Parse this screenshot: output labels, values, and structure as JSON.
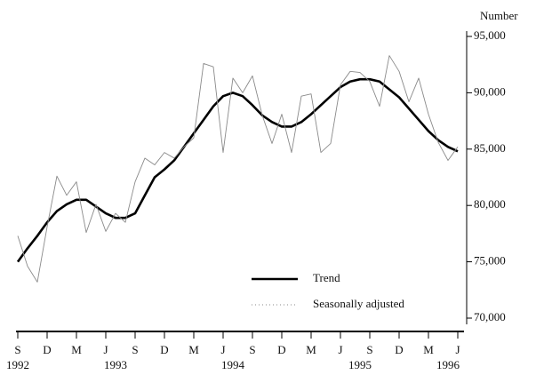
{
  "chart_data": {
    "type": "line",
    "y_axis_label": "Number",
    "categories": [
      "S",
      null,
      null,
      "D",
      null,
      null,
      "M",
      null,
      null,
      "J",
      null,
      null,
      "S",
      null,
      null,
      "D",
      null,
      null,
      "M",
      null,
      null,
      "J",
      null,
      null,
      "S",
      null,
      null,
      "D",
      null,
      null,
      "M",
      null,
      null,
      "J",
      null,
      null,
      "S",
      null,
      null,
      "D",
      null,
      null,
      "M",
      null,
      null,
      "J"
    ],
    "year_labels": [
      "1992",
      null,
      null,
      null,
      null,
      null,
      null,
      null,
      null,
      null,
      "1993",
      null,
      null,
      null,
      null,
      null,
      null,
      null,
      null,
      null,
      null,
      null,
      "1994",
      null,
      null,
      null,
      null,
      null,
      null,
      null,
      null,
      null,
      null,
      null,
      null,
      "1995",
      null,
      null,
      null,
      null,
      null,
      null,
      null,
      null,
      "1996",
      null
    ],
    "series": [
      {
        "name": "Trend",
        "color": "#000000",
        "values": [
          75000,
          76200,
          77300,
          78500,
          79500,
          80100,
          80500,
          80500,
          79900,
          79300,
          78900,
          78900,
          79300,
          80900,
          82500,
          83200,
          84000,
          85200,
          86400,
          87600,
          88800,
          89700,
          90000,
          89700,
          88900,
          88000,
          87400,
          87000,
          87000,
          87400,
          88100,
          88900,
          89700,
          90500,
          91000,
          91200,
          91200,
          91000,
          90300,
          89600,
          88600,
          87600,
          86600,
          85800,
          85200,
          84800
        ]
      },
      {
        "name": "Seasonally adjusted",
        "color": "#8a8a8a",
        "values": [
          77300,
          74600,
          73200,
          78100,
          82600,
          80900,
          82100,
          77600,
          80100,
          77700,
          79300,
          78500,
          82100,
          84200,
          83600,
          84700,
          84200,
          85200,
          86000,
          92600,
          92300,
          84700,
          91300,
          90000,
          91500,
          88000,
          85500,
          88100,
          84700,
          89700,
          89900,
          84700,
          85500,
          90700,
          91900,
          91800,
          91000,
          88800,
          93300,
          91900,
          89200,
          91300,
          88100,
          85600,
          84000,
          85200
        ]
      }
    ],
    "ylim": [
      70000,
      95000
    ],
    "yticks": [
      {
        "value": 70000,
        "label": "70,000"
      },
      {
        "value": 75000,
        "label": "75,000"
      },
      {
        "value": 80000,
        "label": "80,000"
      },
      {
        "value": 85000,
        "label": "85,000"
      },
      {
        "value": 90000,
        "label": "90,000"
      },
      {
        "value": 95000,
        "label": "95,000"
      }
    ],
    "legend": "lower-center",
    "grid": false
  }
}
